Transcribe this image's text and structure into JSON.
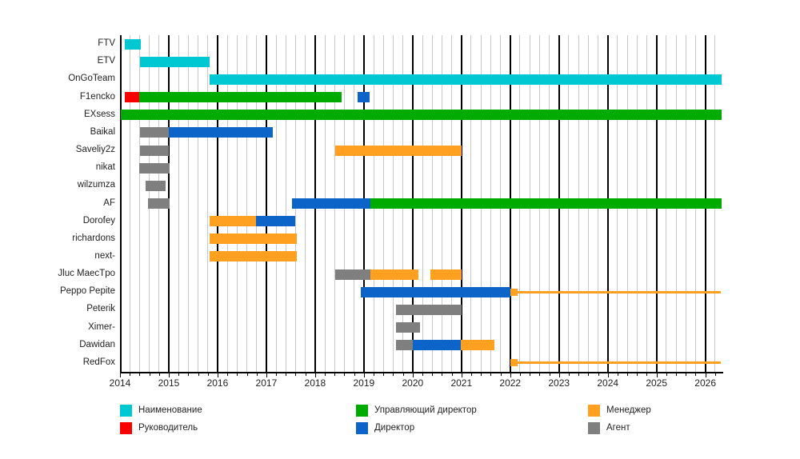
{
  "chart_data": {
    "type": "gantt",
    "title": "",
    "x_axis": {
      "min": 2014,
      "max": 2026.35,
      "minor_step": 0.2,
      "ticks": [
        "2014",
        "2015",
        "2016",
        "2017",
        "2018",
        "2019",
        "2020",
        "2021",
        "2022",
        "2023",
        "2024",
        "2025",
        "2026"
      ]
    },
    "colors": {
      "cyan": "#00c8d2",
      "red": "#fb0000",
      "green": "#00ab00",
      "blue": "#0d64c8",
      "orange": "#ffa020",
      "gray": "#7f7f7f",
      "grid_minor": "#c9c9c9",
      "grid_major": "#000000"
    },
    "legend": [
      {
        "label": "Наименование",
        "color": "cyan"
      },
      {
        "label": "Руководитель",
        "color": "red"
      },
      {
        "label": "Управляющий директор",
        "color": "green"
      },
      {
        "label": "Директор",
        "color": "blue"
      },
      {
        "label": "Менеджер",
        "color": "orange"
      },
      {
        "label": "Агент",
        "color": "gray"
      }
    ],
    "rows": [
      {
        "label": "FTV",
        "bars": [
          {
            "start": 2014.1,
            "end": 2014.43,
            "color": "cyan",
            "shape": "bar"
          }
        ]
      },
      {
        "label": "ETV",
        "bars": [
          {
            "start": 2014.41,
            "end": 2015.84,
            "color": "cyan",
            "shape": "bar"
          }
        ]
      },
      {
        "label": "OnGoTeam",
        "bars": [
          {
            "start": 2015.84,
            "end": 2026.33,
            "color": "cyan",
            "shape": "bar"
          }
        ]
      },
      {
        "label": "F1encko",
        "bars": [
          {
            "start": 2014.1,
            "end": 2014.4,
            "color": "red",
            "shape": "bar"
          },
          {
            "start": 2014.4,
            "end": 2018.54,
            "color": "green",
            "shape": "bar"
          },
          {
            "start": 2018.87,
            "end": 2019.12,
            "color": "blue",
            "shape": "bar"
          }
        ]
      },
      {
        "label": "EXsess",
        "bars": [
          {
            "start": 2014.02,
            "end": 2026.33,
            "color": "green",
            "shape": "bar"
          }
        ]
      },
      {
        "label": "Baikal",
        "bars": [
          {
            "start": 2014.41,
            "end": 2015.0,
            "color": "gray",
            "shape": "bar"
          },
          {
            "start": 2015.0,
            "end": 2017.13,
            "color": "blue",
            "shape": "bar"
          }
        ]
      },
      {
        "label": "Saveliy2z",
        "bars": [
          {
            "start": 2014.41,
            "end": 2015.0,
            "color": "gray",
            "shape": "bar"
          },
          {
            "start": 2018.41,
            "end": 2021.01,
            "color": "orange",
            "shape": "bar"
          }
        ]
      },
      {
        "label": "nikat",
        "bars": [
          {
            "start": 2014.39,
            "end": 2015.01,
            "color": "gray",
            "shape": "bar"
          }
        ]
      },
      {
        "label": "wilzumza",
        "bars": [
          {
            "start": 2014.52,
            "end": 2014.94,
            "color": "gray",
            "shape": "bar"
          }
        ]
      },
      {
        "label": "AF",
        "bars": [
          {
            "start": 2014.57,
            "end": 2015.01,
            "color": "gray",
            "shape": "bar"
          },
          {
            "start": 2017.52,
            "end": 2019.13,
            "color": "blue",
            "shape": "bar"
          },
          {
            "start": 2019.13,
            "end": 2026.33,
            "color": "green",
            "shape": "bar"
          }
        ]
      },
      {
        "label": "Dorofey",
        "bars": [
          {
            "start": 2015.83,
            "end": 2016.79,
            "color": "orange",
            "shape": "bar"
          },
          {
            "start": 2016.79,
            "end": 2017.6,
            "color": "blue",
            "shape": "bar"
          }
        ]
      },
      {
        "label": "richardons",
        "bars": [
          {
            "start": 2015.83,
            "end": 2017.63,
            "color": "orange",
            "shape": "bar"
          }
        ]
      },
      {
        "label": "next-",
        "bars": [
          {
            "start": 2015.83,
            "end": 2017.63,
            "color": "orange",
            "shape": "bar"
          }
        ]
      },
      {
        "label": "Jluc MaecTpo",
        "bars": [
          {
            "start": 2018.41,
            "end": 2019.13,
            "color": "gray",
            "shape": "bar"
          },
          {
            "start": 2019.13,
            "end": 2020.12,
            "color": "orange",
            "shape": "bar"
          },
          {
            "start": 2020.37,
            "end": 2021.0,
            "color": "orange",
            "shape": "bar"
          }
        ]
      },
      {
        "label": "Peppo Pepite",
        "bars": [
          {
            "start": 2018.93,
            "end": 2022.01,
            "color": "blue",
            "shape": "bar"
          },
          {
            "start": 2022.01,
            "end": 2022.15,
            "color": "orange",
            "shape": "marker"
          },
          {
            "start": 2022.15,
            "end": 2026.32,
            "color": "orange",
            "shape": "thin"
          }
        ]
      },
      {
        "label": "Peterik",
        "bars": [
          {
            "start": 2019.66,
            "end": 2021.0,
            "color": "gray",
            "shape": "bar"
          }
        ]
      },
      {
        "label": "Ximer-",
        "bars": [
          {
            "start": 2019.66,
            "end": 2020.15,
            "color": "gray",
            "shape": "bar"
          }
        ]
      },
      {
        "label": "Dawidan",
        "bars": [
          {
            "start": 2019.66,
            "end": 2020.0,
            "color": "gray",
            "shape": "bar"
          },
          {
            "start": 2020.0,
            "end": 2020.99,
            "color": "blue",
            "shape": "bar"
          },
          {
            "start": 2020.99,
            "end": 2021.68,
            "color": "orange",
            "shape": "bar"
          }
        ]
      },
      {
        "label": "RedFox",
        "bars": [
          {
            "start": 2022.0,
            "end": 2022.15,
            "color": "orange",
            "shape": "marker"
          },
          {
            "start": 2022.15,
            "end": 2026.32,
            "color": "orange",
            "shape": "thin"
          }
        ]
      }
    ]
  }
}
